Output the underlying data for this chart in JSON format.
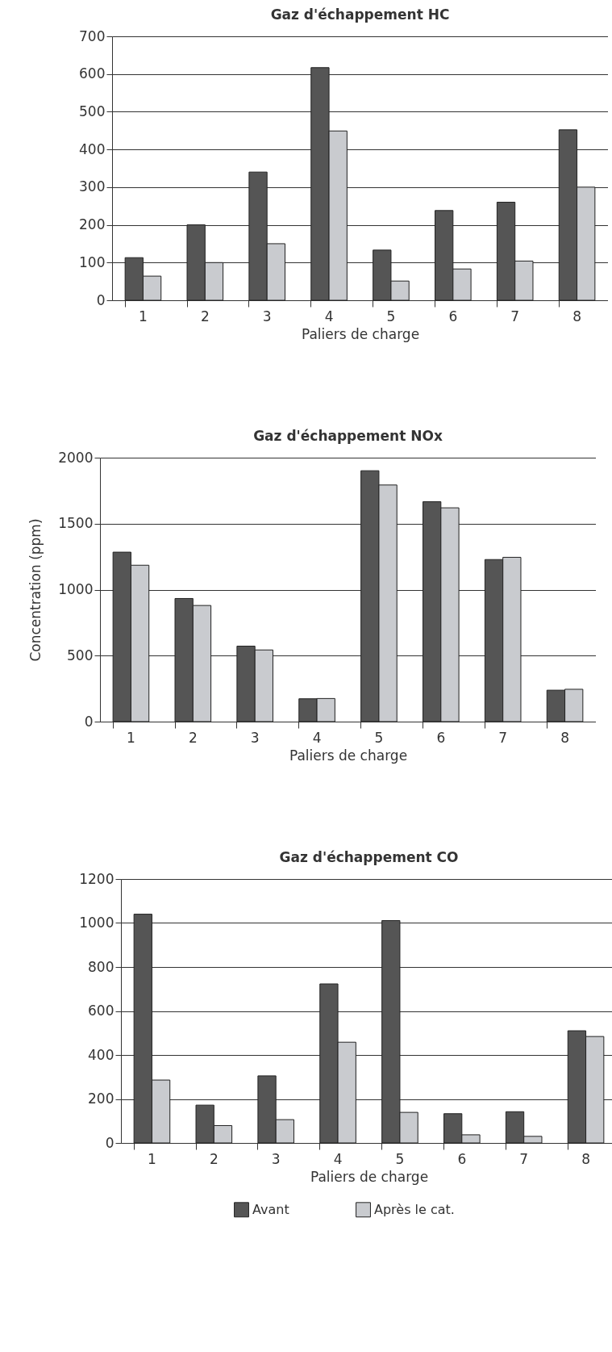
{
  "chart_data": [
    {
      "type": "bar",
      "title": "Gaz d'échappement HC",
      "xlabel": "Paliers de charge",
      "categories": [
        "1",
        "2",
        "3",
        "4",
        "5",
        "6",
        "7",
        "8"
      ],
      "ylim": [
        0,
        700
      ],
      "yticks": [
        0,
        100,
        200,
        300,
        400,
        500,
        600,
        700
      ],
      "grid": "y",
      "series": [
        {
          "color": "#555555",
          "values": [
            113,
            200,
            340,
            617,
            133,
            238,
            260,
            452
          ]
        },
        {
          "color": "#c9cbcf",
          "values": [
            64,
            100,
            150,
            449,
            51,
            83,
            104,
            300
          ]
        }
      ]
    },
    {
      "type": "bar",
      "title": "Gaz d'échappement NOx",
      "xlabel": "Paliers de charge",
      "ylabel": "Concentration (ppm)",
      "categories": [
        "1",
        "2",
        "3",
        "4",
        "5",
        "6",
        "7",
        "8"
      ],
      "ylim": [
        0,
        2000
      ],
      "yticks": [
        0,
        500,
        1000,
        1500,
        2000
      ],
      "grid": "y",
      "series": [
        {
          "color": "#555555",
          "values": [
            1284,
            933,
            572,
            173,
            1901,
            1666,
            1228,
            238
          ]
        },
        {
          "color": "#c9cbcf",
          "values": [
            1185,
            880,
            543,
            175,
            1793,
            1620,
            1245,
            245
          ]
        }
      ]
    },
    {
      "type": "bar",
      "title": "Gaz d'échappement CO",
      "xlabel": "Paliers de charge",
      "categories": [
        "1",
        "2",
        "3",
        "4",
        "5",
        "6",
        "7",
        "8"
      ],
      "ylim": [
        0,
        1200
      ],
      "yticks": [
        0,
        200,
        400,
        600,
        800,
        1000,
        1200
      ],
      "grid": "y",
      "legend": "bottom",
      "series": [
        {
          "name": "Avant",
          "color": "#555555",
          "values": [
            1040,
            172,
            305,
            723,
            1011,
            133,
            142,
            510
          ]
        },
        {
          "name": "Après le cat.",
          "color": "#c9cbcf",
          "values": [
            286,
            79,
            106,
            458,
            139,
            37,
            30,
            484
          ]
        }
      ]
    }
  ]
}
